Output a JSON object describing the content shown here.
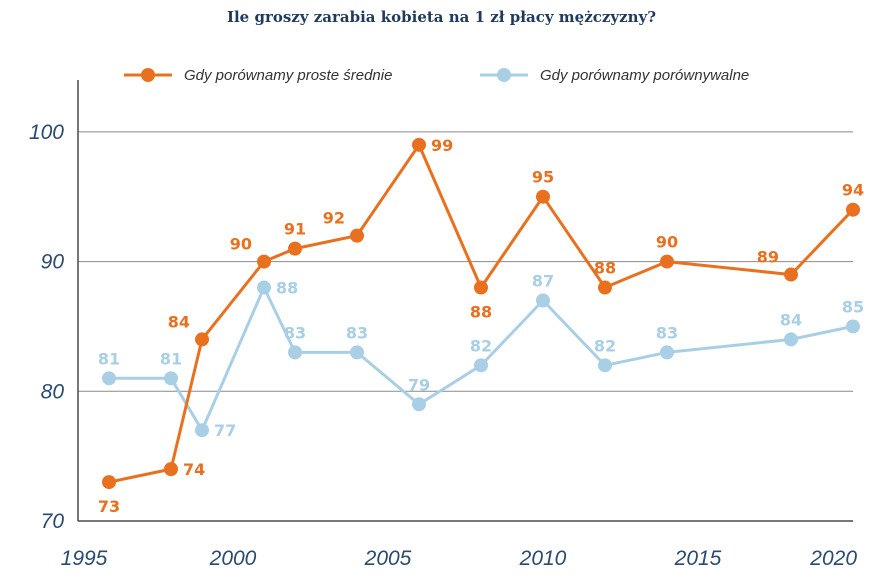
{
  "chart_data": {
    "type": "line",
    "title": "Ile groszy zarabia kobieta na 1 zł płacy mężczyzny?",
    "xlabel": "",
    "ylabel": "",
    "xlim": [
      1995,
      2020
    ],
    "ylim": [
      70,
      104
    ],
    "x_ticks": [
      "1995",
      "2000",
      "2005",
      "2010",
      "2015",
      "2020"
    ],
    "y_ticks": [
      "70",
      "80",
      "90",
      "100"
    ],
    "grid": true,
    "legend_position": "top",
    "series": [
      {
        "name": "Gdy porównamy proste średnie",
        "color": "#e8701e",
        "points": [
          {
            "x": 1996,
            "y": 73,
            "label": "73",
            "label_pos": "below"
          },
          {
            "x": 1998,
            "y": 74,
            "label": "74",
            "label_pos": "right"
          },
          {
            "x": 1999,
            "y": 84,
            "label": "84",
            "label_pos": "above-left"
          },
          {
            "x": 2001,
            "y": 90,
            "label": "90",
            "label_pos": "above-left"
          },
          {
            "x": 2002,
            "y": 91,
            "label": "91",
            "label_pos": "above"
          },
          {
            "x": 2004,
            "y": 92,
            "label": "92",
            "label_pos": "above-left"
          },
          {
            "x": 2006,
            "y": 99,
            "label": "99",
            "label_pos": "right"
          },
          {
            "x": 2008,
            "y": 88,
            "label": "88",
            "label_pos": "below"
          },
          {
            "x": 2010,
            "y": 95,
            "label": "95",
            "label_pos": "above"
          },
          {
            "x": 2012,
            "y": 88,
            "label": "88",
            "label_pos": "above"
          },
          {
            "x": 2014,
            "y": 90,
            "label": "90",
            "label_pos": "above"
          },
          {
            "x": 2018,
            "y": 89,
            "label": "89",
            "label_pos": "above-left"
          },
          {
            "x": 2020,
            "y": 94,
            "label": "94",
            "label_pos": "above"
          }
        ]
      },
      {
        "name": "Gdy porównamy porównywalne",
        "color": "#a9cfe6",
        "points": [
          {
            "x": 1996,
            "y": 81,
            "label": "81",
            "label_pos": "above"
          },
          {
            "x": 1998,
            "y": 81,
            "label": "81",
            "label_pos": "above"
          },
          {
            "x": 1999,
            "y": 77,
            "label": "77",
            "label_pos": "right"
          },
          {
            "x": 2001,
            "y": 88,
            "label": "88",
            "label_pos": "right"
          },
          {
            "x": 2002,
            "y": 83,
            "label": "83",
            "label_pos": "above"
          },
          {
            "x": 2004,
            "y": 83,
            "label": "83",
            "label_pos": "above"
          },
          {
            "x": 2006,
            "y": 79,
            "label": "79",
            "label_pos": "above"
          },
          {
            "x": 2008,
            "y": 82,
            "label": "82",
            "label_pos": "above"
          },
          {
            "x": 2010,
            "y": 87,
            "label": "87",
            "label_pos": "above"
          },
          {
            "x": 2012,
            "y": 82,
            "label": "82",
            "label_pos": "above"
          },
          {
            "x": 2014,
            "y": 83,
            "label": "83",
            "label_pos": "above"
          },
          {
            "x": 2018,
            "y": 84,
            "label": "84",
            "label_pos": "above"
          },
          {
            "x": 2020,
            "y": 85,
            "label": "85",
            "label_pos": "above"
          }
        ]
      }
    ]
  }
}
